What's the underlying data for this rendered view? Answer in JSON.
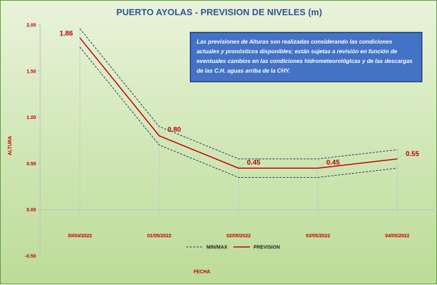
{
  "chart_data": {
    "type": "line",
    "title": "PUERTO AYOLAS - PREVISION DE NIVELES (m)",
    "xlabel": "FECHA",
    "ylabel": "ALTURA",
    "categories": [
      "30/04/2022",
      "01/05/2022",
      "02/05/2022",
      "03/05/2022",
      "04/05/2022"
    ],
    "series": [
      {
        "name": "PREVISION",
        "values": [
          1.86,
          0.8,
          0.45,
          0.45,
          0.55
        ],
        "color": "#c00000",
        "style": "solid",
        "labels": [
          "1.86",
          "0.80",
          "0.45",
          "0.45",
          "0.55"
        ]
      },
      {
        "name": "MIN/MAX",
        "values": [
          1.96,
          0.9,
          0.55,
          0.55,
          0.65
        ],
        "color": "#1f3864",
        "style": "dashed"
      },
      {
        "name": "",
        "values": [
          1.76,
          0.7,
          0.35,
          0.35,
          0.45
        ],
        "color": "#1f3864",
        "style": "dashed"
      }
    ],
    "ylim": [
      -0.5,
      2.0
    ],
    "yticks": [
      "2.00",
      "1.50",
      "1.00",
      "0.50",
      "0.00",
      "-0.50"
    ],
    "grid": false,
    "legend": "bottom"
  },
  "note": {
    "text": "Las previsiones de Alturas son realizadas considerando las condiciones actuales y pronósticos disponibles;  están sujetas a revisión en función de eventuales cambios en las condiciones hidrometeorológicas y de las descargas de las C.H. aguas arriba de la CHY."
  }
}
